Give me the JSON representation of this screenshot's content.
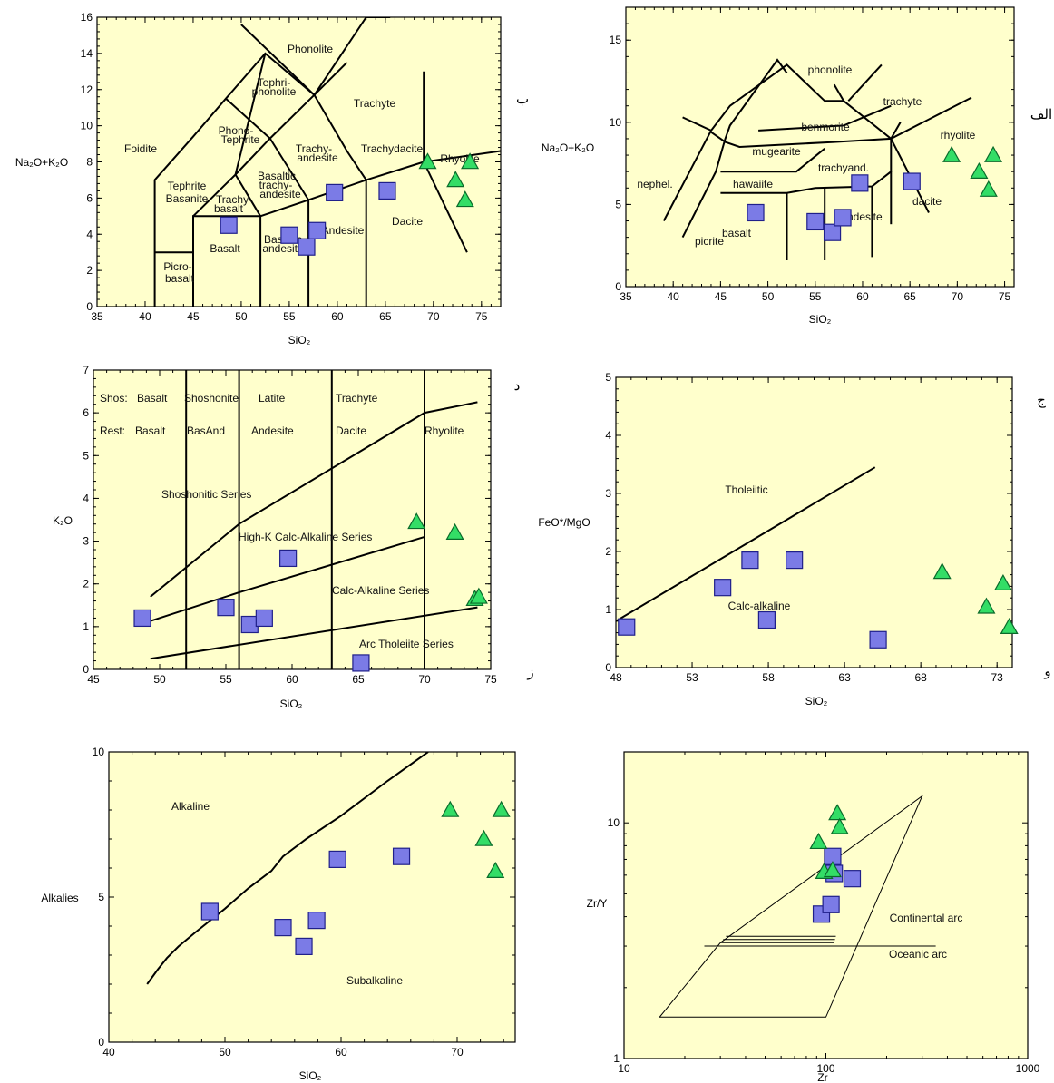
{
  "colors": {
    "plot_background": "#ffffcc",
    "square_fill": "#7b7be6",
    "triangle_fill": "#33dd66"
  },
  "chart_data": [
    {
      "id": "tas-middlemost",
      "type": "scatter",
      "panel_letter": "ب",
      "xlabel": "SiO₂",
      "ylabel": "Na₂O+K₂O",
      "xlim": [
        35,
        77
      ],
      "ylim": [
        0,
        16
      ],
      "xticks": [
        "35",
        "40",
        "45",
        "50",
        "55",
        "60",
        "65",
        "70",
        "75"
      ],
      "yticks": [
        "0",
        "2",
        "4",
        "6",
        "8",
        "10",
        "12",
        "14",
        "16"
      ],
      "field_labels": [
        "Phonolite",
        "Tephri-",
        "phonolite",
        "Trachyte",
        "Phono-",
        "Tephrite",
        "Trachy-",
        "andesite",
        "Trachydacite",
        "Rhyolite",
        "Foidite",
        "Tephrite",
        "Basanite",
        "Trachy-",
        "basalt",
        "Basaltic",
        "trachy-",
        "andesite",
        "Basalt",
        "Basaltic",
        "andesite",
        "Andesite",
        "Dacite",
        "Picro-",
        "basalt"
      ],
      "field_lines": [
        [
          [
            41,
            0
          ],
          [
            41,
            7
          ],
          [
            45,
            9.4
          ],
          [
            48.4,
            11.5
          ],
          [
            52.5,
            14
          ],
          [
            57.6,
            11.7
          ],
          [
            63,
            16
          ],
          [
            65.5,
            16
          ]
        ],
        [
          [
            41,
            3
          ],
          [
            45,
            3
          ]
        ],
        [
          [
            45,
            0
          ],
          [
            45,
            5
          ],
          [
            52,
            5
          ],
          [
            52,
            0
          ]
        ],
        [
          [
            45,
            5
          ],
          [
            49.4,
            7.3
          ],
          [
            53,
            9.3
          ],
          [
            57.6,
            11.7
          ]
        ],
        [
          [
            52,
            5
          ],
          [
            57,
            5.9
          ],
          [
            63,
            7
          ],
          [
            69,
            8
          ]
        ],
        [
          [
            49.4,
            7.3
          ],
          [
            52,
            5
          ]
        ],
        [
          [
            53,
            9.3
          ],
          [
            57,
            5.9
          ],
          [
            57,
            0
          ]
        ],
        [
          [
            57.6,
            11.7
          ],
          [
            61,
            8.6
          ],
          [
            63,
            7
          ],
          [
            63,
            0
          ]
        ],
        [
          [
            48.4,
            11.5
          ],
          [
            53,
            9.3
          ]
        ],
        [
          [
            52.5,
            14
          ],
          [
            49.4,
            7.3
          ]
        ],
        [
          [
            57.6,
            11.7
          ],
          [
            50,
            15.6
          ]
        ],
        [
          [
            61,
            13.5
          ],
          [
            57.6,
            11.7
          ]
        ],
        [
          [
            69,
            8
          ],
          [
            77,
            8.6
          ]
        ],
        [
          [
            69,
            13
          ],
          [
            69,
            8
          ]
        ],
        [
          [
            69,
            8
          ],
          [
            73.5,
            3
          ]
        ]
      ],
      "series": [
        {
          "marker": "square",
          "points": [
            [
              48.7,
              4.5
            ],
            [
              55,
              3.95
            ],
            [
              56.8,
              3.3
            ],
            [
              57.9,
              4.2
            ],
            [
              59.7,
              6.3
            ],
            [
              65.2,
              6.4
            ]
          ]
        },
        {
          "marker": "triangle",
          "points": [
            [
              69.4,
              8
            ],
            [
              72.3,
              7
            ],
            [
              73.3,
              5.9
            ],
            [
              73.8,
              8
            ]
          ]
        }
      ]
    },
    {
      "id": "tas-cox",
      "type": "scatter",
      "panel_letter": "الف",
      "xlabel": "SiO₂",
      "ylabel": "Na₂O+K₂O",
      "xlim": [
        35,
        76
      ],
      "ylim": [
        0,
        17
      ],
      "xticks": [
        "35",
        "40",
        "45",
        "50",
        "55",
        "60",
        "65",
        "70",
        "75"
      ],
      "yticks": [
        "0",
        "5",
        "10",
        "15"
      ],
      "field_labels": [
        "phonolite",
        "trachyte",
        "rhyolite",
        "benmorite",
        "mugearite",
        "trachyand.",
        "nephel.",
        "hawaiite",
        "basalt",
        "picrite",
        "andesite",
        "dacite"
      ],
      "field_lines": [
        [
          [
            39,
            4
          ],
          [
            44,
            9.5
          ],
          [
            46,
            11
          ],
          [
            52,
            13.5
          ],
          [
            56,
            11.3
          ],
          [
            58,
            11.3
          ],
          [
            63,
            9
          ],
          [
            71.5,
            11.5
          ]
        ],
        [
          [
            41,
            3
          ],
          [
            44.5,
            7
          ],
          [
            45.5,
            9
          ],
          [
            46,
            9.8
          ],
          [
            50,
            13
          ],
          [
            51,
            13.8
          ],
          [
            52,
            13
          ]
        ],
        [
          [
            44,
            9.5
          ],
          [
            41,
            10.3
          ]
        ],
        [
          [
            44,
            9.4
          ],
          [
            45.5,
            8.8
          ],
          [
            47,
            8.5
          ],
          [
            57,
            8.8
          ],
          [
            63,
            9
          ],
          [
            64,
            10
          ]
        ],
        [
          [
            45,
            7
          ],
          [
            53,
            7
          ],
          [
            56,
            8.4
          ]
        ],
        [
          [
            49,
            9.5
          ],
          [
            58,
            9.8
          ],
          [
            63,
            11
          ]
        ],
        [
          [
            45,
            5.7
          ],
          [
            52,
            5.7
          ],
          [
            55,
            6
          ],
          [
            61,
            6.1
          ],
          [
            63,
            7
          ],
          [
            63,
            9
          ]
        ],
        [
          [
            52,
            5.7
          ],
          [
            52,
            1.6
          ]
        ],
        [
          [
            56,
            6
          ],
          [
            56,
            1.6
          ]
        ],
        [
          [
            61,
            6.1
          ],
          [
            61,
            1.8
          ]
        ],
        [
          [
            63,
            7
          ],
          [
            63,
            3.8
          ]
        ],
        [
          [
            63,
            9
          ],
          [
            67,
            4.5
          ]
        ],
        [
          [
            58,
            11.3
          ],
          [
            57,
            12.3
          ]
        ],
        [
          [
            58.5,
            11.3
          ],
          [
            62,
            13.5
          ]
        ]
      ],
      "series": [
        {
          "marker": "square",
          "points": [
            [
              48.7,
              4.5
            ],
            [
              55,
              3.95
            ],
            [
              56.8,
              3.3
            ],
            [
              57.9,
              4.2
            ],
            [
              59.7,
              6.3
            ],
            [
              65.2,
              6.4
            ]
          ]
        },
        {
          "marker": "triangle",
          "points": [
            [
              69.4,
              8
            ],
            [
              72.3,
              7
            ],
            [
              73.3,
              5.9
            ],
            [
              73.8,
              8
            ]
          ]
        }
      ]
    },
    {
      "id": "k2o-sio2",
      "type": "scatter",
      "panel_letter_top": "د",
      "panel_letter_bottom": "ز",
      "xlabel": "SiO₂",
      "ylabel": "K₂O",
      "xlim": [
        45,
        75
      ],
      "ylim": [
        0,
        7
      ],
      "xticks": [
        "45",
        "50",
        "55",
        "60",
        "65",
        "70",
        "75"
      ],
      "yticks": [
        "0",
        "1",
        "2",
        "3",
        "4",
        "5",
        "6",
        "7"
      ],
      "field_labels": [
        "Shos:",
        "Basalt",
        "Shoshonite",
        "Latite",
        "Trachyte",
        "Rest:",
        "Basalt",
        "BasAnd",
        "Andesite",
        "Dacite",
        "Rhyolite",
        "Shoshonitic Series",
        "High-K Calc-Alkaline Series",
        "Calc-Alkaline Series",
        "Arc Tholeiite Series"
      ],
      "field_lines": [
        [
          [
            49.3,
            1.7
          ],
          [
            56,
            3.4
          ],
          [
            70,
            6
          ],
          [
            74,
            6.25
          ]
        ],
        [
          [
            49,
            1.1
          ],
          [
            56,
            1.8
          ],
          [
            70,
            3.1
          ]
        ],
        [
          [
            49.3,
            0.25
          ],
          [
            74,
            1.45
          ]
        ],
        [
          [
            52,
            0
          ],
          [
            52,
            7
          ]
        ],
        [
          [
            56,
            0
          ],
          [
            56,
            7
          ]
        ],
        [
          [
            63,
            0
          ],
          [
            63,
            7
          ]
        ],
        [
          [
            70,
            0
          ],
          [
            70,
            7
          ]
        ]
      ],
      "series": [
        {
          "marker": "square",
          "points": [
            [
              48.7,
              1.2
            ],
            [
              55,
              1.45
            ],
            [
              56.8,
              1.05
            ],
            [
              57.9,
              1.2
            ],
            [
              59.7,
              2.6
            ],
            [
              65.2,
              0.15
            ]
          ]
        },
        {
          "marker": "triangle",
          "points": [
            [
              69.4,
              3.45
            ],
            [
              72.3,
              3.2
            ],
            [
              73.8,
              1.65
            ],
            [
              74.1,
              1.7
            ]
          ]
        }
      ]
    },
    {
      "id": "feo-mgo",
      "type": "scatter",
      "panel_letter_top": "ج",
      "panel_letter_bottom": "و",
      "xlabel": "SiO₂",
      "ylabel": "FeO*/MgO",
      "xlim": [
        48,
        74
      ],
      "ylim": [
        0,
        5
      ],
      "xticks": [
        "48",
        "53",
        "58",
        "63",
        "68",
        "73"
      ],
      "yticks": [
        "0",
        "1",
        "2",
        "3",
        "4",
        "5"
      ],
      "field_labels": [
        "Tholeiitic",
        "Calc-alkaline"
      ],
      "field_lines": [
        [
          [
            48,
            0.8
          ],
          [
            65,
            3.45
          ]
        ]
      ],
      "series": [
        {
          "marker": "square",
          "points": [
            [
              48.7,
              0.7
            ],
            [
              55,
              1.38
            ],
            [
              56.8,
              1.85
            ],
            [
              57.9,
              0.82
            ],
            [
              59.7,
              1.85
            ],
            [
              65.2,
              0.48
            ]
          ]
        },
        {
          "marker": "triangle",
          "points": [
            [
              69.4,
              1.65
            ],
            [
              72.3,
              1.05
            ],
            [
              73.4,
              1.45
            ],
            [
              73.8,
              0.7
            ]
          ]
        }
      ]
    },
    {
      "id": "alk-subalk",
      "type": "scatter",
      "xlabel": "SiO₂",
      "ylabel": "Alkalies",
      "xlim": [
        40,
        75
      ],
      "ylim": [
        0,
        10
      ],
      "xticks": [
        "40",
        "50",
        "60",
        "70"
      ],
      "yticks": [
        "0",
        "5",
        "10"
      ],
      "field_labels": [
        "Alkaline",
        "Subalkaline"
      ],
      "field_lines": [
        [
          [
            43.3,
            2
          ],
          [
            44.2,
            2.5
          ],
          [
            45,
            2.9
          ],
          [
            46,
            3.3
          ],
          [
            47.5,
            3.8
          ],
          [
            50,
            4.6
          ],
          [
            52,
            5.3
          ],
          [
            54,
            5.9
          ],
          [
            55,
            6.4
          ],
          [
            57,
            7
          ],
          [
            60,
            7.8
          ],
          [
            64,
            9
          ],
          [
            67.5,
            10
          ]
        ]
      ],
      "series": [
        {
          "marker": "square",
          "points": [
            [
              48.7,
              4.5
            ],
            [
              55,
              3.95
            ],
            [
              56.8,
              3.3
            ],
            [
              57.9,
              4.2
            ],
            [
              59.7,
              6.3
            ],
            [
              65.2,
              6.4
            ]
          ]
        },
        {
          "marker": "triangle",
          "points": [
            [
              69.4,
              8
            ],
            [
              72.3,
              7
            ],
            [
              73.3,
              5.9
            ],
            [
              73.8,
              8
            ]
          ]
        }
      ]
    },
    {
      "id": "zry-zr",
      "type": "scatter",
      "xscale": "log",
      "yscale": "log",
      "xlabel": "Zr",
      "ylabel": "Zr/Y",
      "xlim": [
        10,
        1000
      ],
      "ylim": [
        1,
        20
      ],
      "xticks": [
        "10",
        "100",
        "1000"
      ],
      "yticks": [
        "1",
        "10"
      ],
      "field_labels": [
        "Continental arc",
        "Oceanic arc"
      ],
      "field_lines": [
        [
          [
            30,
            3.1
          ],
          [
            300,
            13
          ],
          [
            100,
            1.5
          ],
          [
            15,
            1.5
          ],
          [
            30,
            3.1
          ]
        ],
        [
          [
            25,
            3
          ],
          [
            350,
            3
          ]
        ],
        [
          [
            30,
            3.1
          ],
          [
            110,
            3.1
          ]
        ],
        [
          [
            31,
            3.2
          ],
          [
            111,
            3.2
          ]
        ],
        [
          [
            32,
            3.3
          ],
          [
            112,
            3.3
          ]
        ]
      ],
      "series": [
        {
          "marker": "square",
          "points": [
            [
              95,
              4.1
            ],
            [
              106,
              4.5
            ],
            [
              108,
              7.2
            ],
            [
              110,
              6.1
            ],
            [
              135,
              5.8
            ]
          ]
        },
        {
          "marker": "triangle",
          "points": [
            [
              92,
              8.3
            ],
            [
              98,
              6.2
            ],
            [
              108,
              6.3
            ],
            [
              114,
              11
            ],
            [
              117,
              9.6
            ]
          ]
        }
      ]
    }
  ]
}
